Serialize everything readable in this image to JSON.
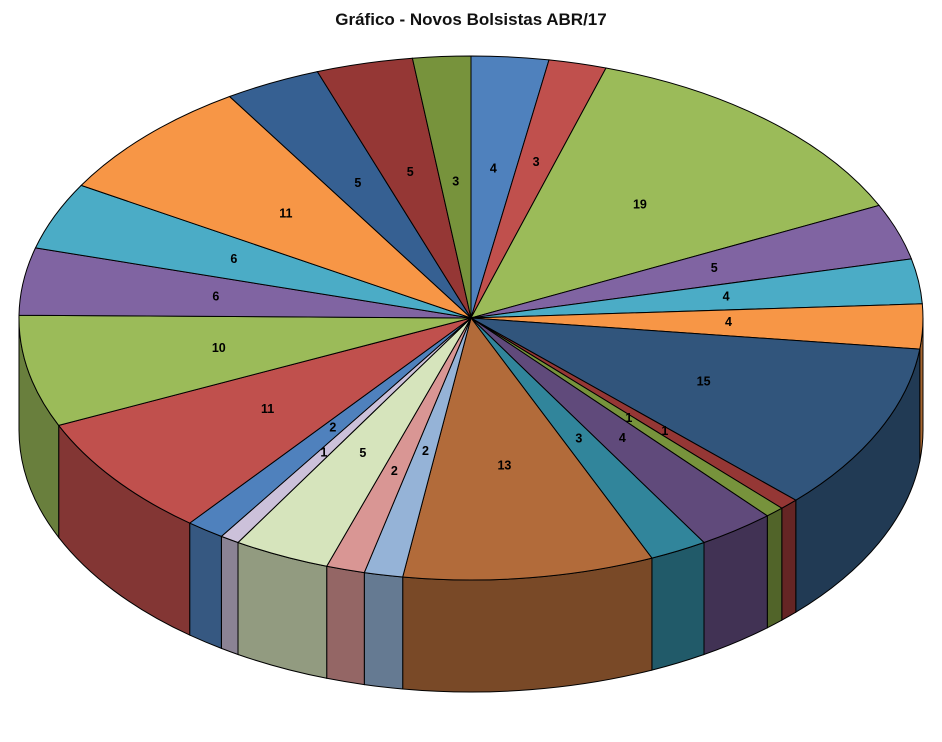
{
  "title": "Gráfico - Novos Bolsistas ABR/17",
  "background_color": "#FFFFFF",
  "chart_data": {
    "type": "pie",
    "style": "3d",
    "title": "Gráfico - Novos Bolsistas ABR/17",
    "legend": "none",
    "grid": "off",
    "direction": "clockwise",
    "start_angle_deg": 0,
    "data_labels": "values",
    "total": 145,
    "values": [
      4,
      3,
      19,
      5,
      4,
      4,
      15,
      1,
      1,
      4,
      3,
      13,
      2,
      2,
      5,
      1,
      2,
      11,
      10,
      6,
      6,
      11,
      5,
      5,
      3
    ],
    "colors": [
      "#4F81BD",
      "#C0504D",
      "#9BBB59",
      "#8064A2",
      "#4BACC6",
      "#F79646",
      "#31557C",
      "#953735",
      "#77933C",
      "#604A7B",
      "#31859B",
      "#B26B3A",
      "#95B3D7",
      "#D99694",
      "#D6E4BC",
      "#CCC1DA",
      "#4F81BD",
      "#C0504D",
      "#9BBB59",
      "#8064A2",
      "#4BACC6",
      "#F79646",
      "#366092",
      "#953735",
      "#77933C"
    ]
  }
}
